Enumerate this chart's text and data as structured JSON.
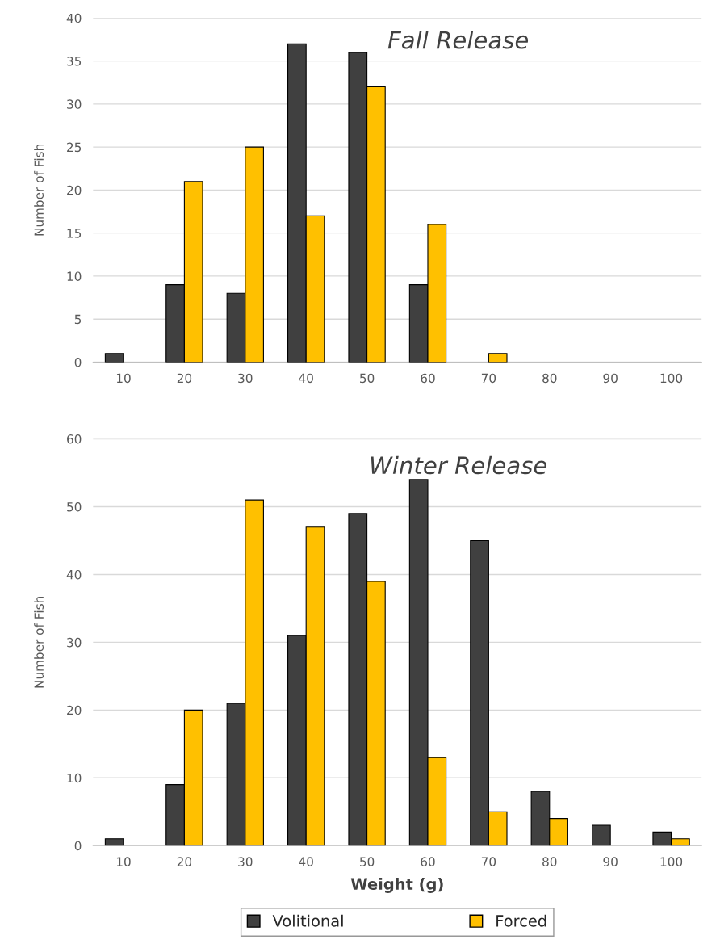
{
  "chart_data": [
    {
      "type": "bar",
      "title": "Fall Release",
      "ylabel": "Number of Fish",
      "categories": [
        "10",
        "20",
        "30",
        "40",
        "50",
        "60",
        "70",
        "80",
        "90",
        "100"
      ],
      "series": [
        {
          "color": "#404040",
          "values": [
            1,
            9,
            8,
            37,
            36,
            9,
            0,
            0,
            0,
            0
          ]
        },
        {
          "color": "#ffc000",
          "values": [
            0,
            21,
            25,
            17,
            32,
            16,
            1,
            0,
            0,
            0
          ]
        }
      ],
      "ylim": [
        0,
        40
      ],
      "yticks": [
        0,
        5,
        10,
        15,
        20,
        25,
        30,
        35,
        40
      ],
      "grid": "y"
    },
    {
      "type": "bar",
      "title": "Winter Release",
      "ylabel": "Number of Fish",
      "xlabel": "Weight (g)",
      "categories": [
        "10",
        "20",
        "30",
        "40",
        "50",
        "60",
        "70",
        "80",
        "90",
        "100"
      ],
      "series": [
        {
          "name": "Volitional",
          "color": "#404040",
          "values": [
            1,
            9,
            21,
            31,
            49,
            54,
            45,
            8,
            3,
            2
          ]
        },
        {
          "name": "Forced",
          "color": "#ffc000",
          "values": [
            0,
            20,
            51,
            47,
            39,
            13,
            5,
            4,
            0,
            1
          ]
        }
      ],
      "ylim": [
        0,
        60
      ],
      "yticks": [
        0,
        10,
        20,
        30,
        40,
        50,
        60
      ],
      "grid": "y",
      "legend": "bottom"
    }
  ]
}
